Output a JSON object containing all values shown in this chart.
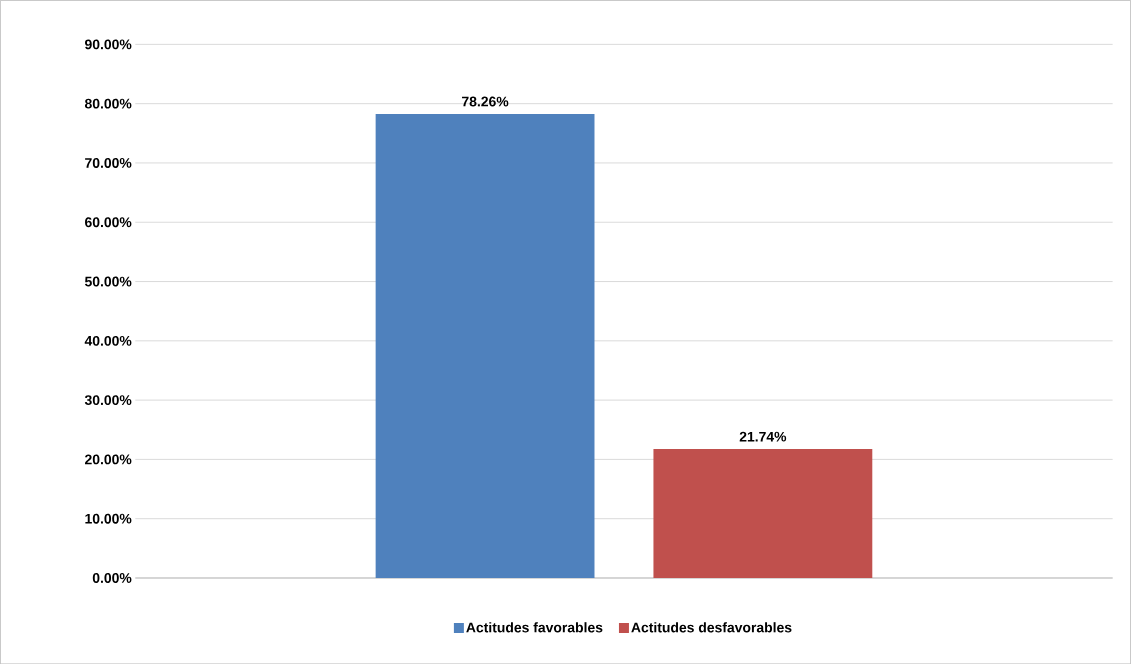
{
  "chart_data": {
    "type": "bar",
    "categories": [
      null
    ],
    "series": [
      {
        "name": "Actitudes favorables",
        "color": "#4f81bd",
        "values": [
          78.26
        ],
        "value_labels": [
          "78.26%"
        ]
      },
      {
        "name": "Actitudes desfavorables",
        "color": "#c0504d",
        "values": [
          21.74
        ],
        "value_labels": [
          "21.74%"
        ]
      }
    ],
    "ylim": [
      0,
      90
    ],
    "yticks": [
      {
        "value": 0,
        "label": "0.00%"
      },
      {
        "value": 10,
        "label": "10.00%"
      },
      {
        "value": 20,
        "label": "20.00%"
      },
      {
        "value": 30,
        "label": "30.00%"
      },
      {
        "value": 40,
        "label": "40.00%"
      },
      {
        "value": 50,
        "label": "50.00%"
      },
      {
        "value": 60,
        "label": "60.00%"
      },
      {
        "value": 70,
        "label": "70.00%"
      },
      {
        "value": 80,
        "label": "80.00%"
      },
      {
        "value": 90,
        "label": "90.00%"
      }
    ],
    "grid": "y",
    "legend": "bottom"
  }
}
